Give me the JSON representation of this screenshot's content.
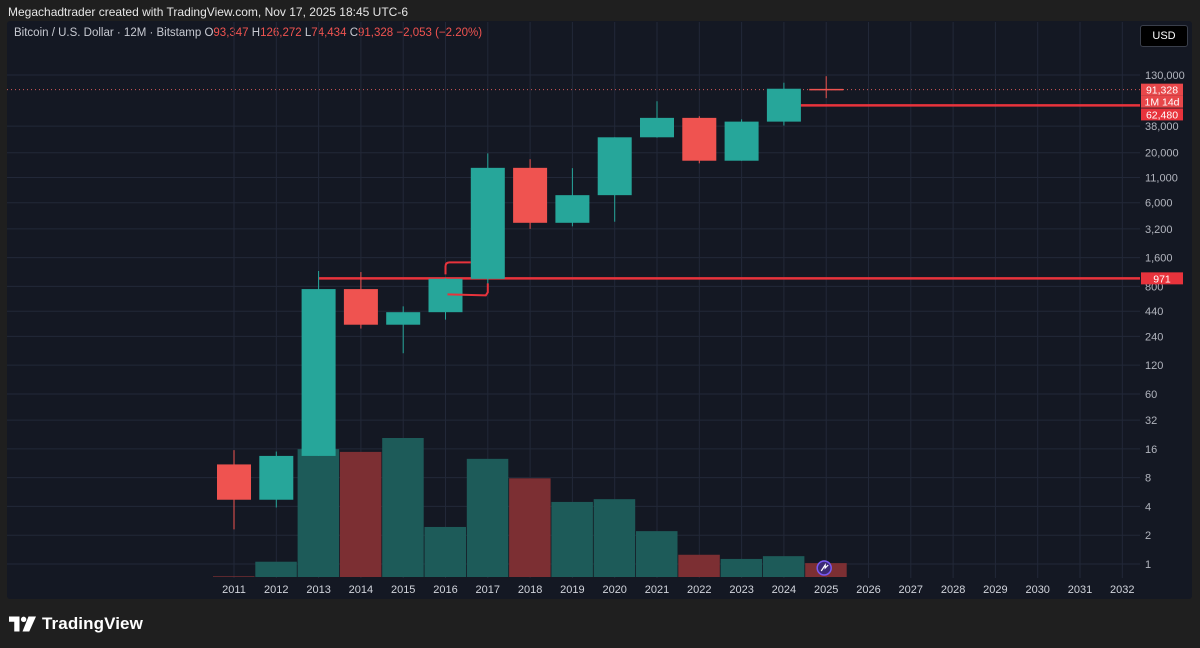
{
  "header": {
    "caption": "Megachadtrader created with TradingView.com, Nov 17, 2025 18:45 UTC-6",
    "symbol": "Bitcoin / U.S. Dollar · 12M · Bitstamp",
    "o_label": "O",
    "o_value": "93,347",
    "h_label": "H",
    "h_value": "126,272",
    "l_label": "L",
    "l_value": "74,434",
    "c_label": "C",
    "c_value": "91,328",
    "change": "−2,053 (−2.20%)",
    "currency": "USD"
  },
  "brand": {
    "name": "TradingView"
  },
  "colors": {
    "up": "#26a69a",
    "down": "#ef5350",
    "vol_up": "#1d5b59",
    "vol_down": "#7c2f33",
    "line": "#e8333c",
    "bg": "#141823"
  },
  "chart_data": {
    "type": "candlestick",
    "title": "Bitcoin / U.S. Dollar · 12M · Bitstamp",
    "y_scale": "log",
    "y_ticks": [
      1,
      2,
      4,
      8,
      16,
      32,
      60,
      120,
      240,
      440,
      800,
      1600,
      3200,
      6000,
      11000,
      20000,
      38000,
      130000
    ],
    "y_tick_labels": [
      "1",
      "2",
      "4",
      "8",
      "16",
      "32",
      "60",
      "120",
      "240",
      "440",
      "800",
      "1,600",
      "3,200",
      "6,000",
      "11,000",
      "20,000",
      "38,000",
      "130,000"
    ],
    "x_labels": [
      "2011",
      "2012",
      "2013",
      "2014",
      "2015",
      "2016",
      "2017",
      "2018",
      "2019",
      "2020",
      "2021",
      "2022",
      "2023",
      "2024",
      "2025",
      "2026",
      "2027",
      "2028",
      "2029",
      "2030",
      "2031",
      "2032"
    ],
    "candles": [
      {
        "year": "2011",
        "open": 11.0,
        "high": 15.5,
        "low": 2.3,
        "close": 4.7
      },
      {
        "year": "2012",
        "open": 4.7,
        "high": 15.0,
        "low": 3.9,
        "close": 13.5
      },
      {
        "year": "2013",
        "open": 13.5,
        "high": 1160,
        "low": 13.5,
        "close": 750
      },
      {
        "year": "2014",
        "open": 750,
        "high": 1130,
        "low": 290,
        "close": 318
      },
      {
        "year": "2015",
        "open": 318,
        "high": 495,
        "low": 160,
        "close": 430
      },
      {
        "year": "2016",
        "open": 430,
        "high": 980,
        "low": 360,
        "close": 960
      },
      {
        "year": "2017",
        "open": 960,
        "high": 19700,
        "low": 750,
        "close": 13900
      },
      {
        "year": "2018",
        "open": 13900,
        "high": 17100,
        "low": 3200,
        "close": 3700
      },
      {
        "year": "2019",
        "open": 3700,
        "high": 13800,
        "low": 3400,
        "close": 7200
      },
      {
        "year": "2020",
        "open": 7200,
        "high": 29000,
        "low": 3800,
        "close": 29000
      },
      {
        "year": "2021",
        "open": 29000,
        "high": 69000,
        "low": 28800,
        "close": 46300
      },
      {
        "year": "2022",
        "open": 46300,
        "high": 48200,
        "low": 15500,
        "close": 16500
      },
      {
        "year": "2023",
        "open": 16500,
        "high": 44700,
        "low": 16500,
        "close": 42300
      },
      {
        "year": "2024",
        "open": 42300,
        "high": 108000,
        "low": 38500,
        "close": 93400
      },
      {
        "year": "2025",
        "open": 93347,
        "high": 126272,
        "low": 74434,
        "close": 91328
      }
    ],
    "volume_ticks": [],
    "volume": [
      {
        "year": "2011",
        "dir": "down",
        "rel": 0.005
      },
      {
        "year": "2012",
        "dir": "up",
        "rel": 0.11
      },
      {
        "year": "2013",
        "dir": "up",
        "rel": 0.92
      },
      {
        "year": "2014",
        "dir": "down",
        "rel": 0.9
      },
      {
        "year": "2015",
        "dir": "up",
        "rel": 1.0
      },
      {
        "year": "2016",
        "dir": "up",
        "rel": 0.36
      },
      {
        "year": "2017",
        "dir": "up",
        "rel": 0.85
      },
      {
        "year": "2018",
        "dir": "down",
        "rel": 0.71
      },
      {
        "year": "2019",
        "dir": "up",
        "rel": 0.54
      },
      {
        "year": "2020",
        "dir": "up",
        "rel": 0.56
      },
      {
        "year": "2021",
        "dir": "up",
        "rel": 0.33
      },
      {
        "year": "2022",
        "dir": "down",
        "rel": 0.16
      },
      {
        "year": "2023",
        "dir": "up",
        "rel": 0.13
      },
      {
        "year": "2024",
        "dir": "up",
        "rel": 0.15
      },
      {
        "year": "2025",
        "dir": "down",
        "rel": 0.1
      }
    ],
    "horizontal_lines": [
      {
        "price": 62480,
        "label": "62,480",
        "start_year": "2024"
      },
      {
        "price": 971,
        "label": "971",
        "start_year": "2013"
      }
    ],
    "price_labels": [
      {
        "label": "91,328",
        "price": 91328
      },
      {
        "label": "1M 14d",
        "note": "time to bar close"
      }
    ],
    "overlay_bracket": {
      "from_year": "2016",
      "to_year": "2017"
    }
  }
}
